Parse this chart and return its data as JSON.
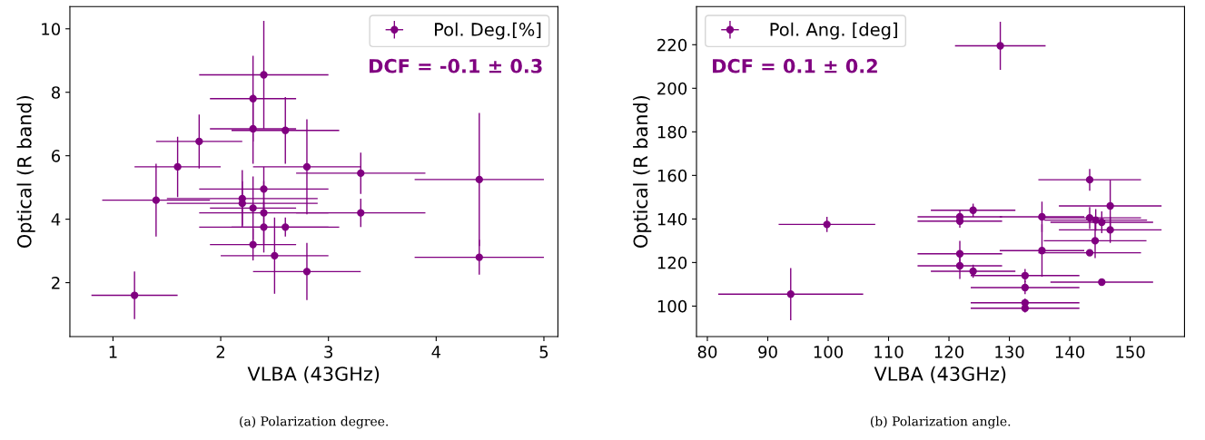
{
  "chart_data": [
    {
      "type": "scatter",
      "xlabel": "VLBA (43GHz)",
      "ylabel": "Optical (R band)",
      "xlim": [
        0.6,
        5.13
      ],
      "ylim": [
        0.3,
        10.7
      ],
      "xticks": [
        1,
        2,
        3,
        4,
        5
      ],
      "yticks": [
        2,
        4,
        6,
        8,
        10
      ],
      "legend": "top right",
      "grid": false,
      "marker": "circle",
      "annotations": [
        "DCF = -0.1 ± 0.3",
        "(a) Polarization degree."
      ],
      "series": [
        {
          "name": "Pol. Deg.[%]",
          "color": "#800080",
          "x": [
            1.2,
            1.4,
            1.6,
            1.8,
            2.3,
            2.4,
            2.3,
            2.6,
            2.8,
            3.3,
            4.4,
            2.4,
            2.2,
            2.2,
            2.3,
            2.4,
            3.3,
            2.4,
            2.6,
            2.3,
            2.5,
            2.8,
            4.4
          ],
          "values": [
            1.6,
            4.6,
            5.65,
            6.45,
            7.8,
            8.55,
            6.85,
            6.8,
            5.65,
            5.45,
            5.25,
            4.95,
            4.65,
            4.5,
            4.35,
            4.2,
            4.2,
            3.75,
            3.75,
            3.2,
            2.85,
            2.35,
            2.8
          ],
          "xerrors": [
            0.4,
            0.5,
            0.4,
            0.4,
            0.4,
            0.6,
            0.4,
            0.5,
            0.5,
            0.6,
            0.6,
            0.6,
            0.7,
            0.7,
            0.4,
            0.6,
            0.6,
            0.6,
            0.5,
            0.4,
            0.5,
            0.5,
            0.6
          ],
          "errors": [
            0.75,
            1.15,
            0.95,
            0.85,
            1.35,
            1.7,
            1.1,
            1.05,
            1.5,
            0.65,
            2.1,
            0.7,
            0.9,
            0.7,
            1.0,
            1.0,
            0.45,
            0.8,
            0.3,
            0.5,
            1.2,
            0.9,
            0.55
          ]
        }
      ]
    },
    {
      "type": "scatter",
      "xlabel": "VLBA (43GHz)",
      "ylabel": "Optical (R band)",
      "xlim": [
        78.2,
        159
      ],
      "ylim": [
        86,
        237.5
      ],
      "xticks": [
        80,
        90,
        100,
        110,
        120,
        130,
        140,
        150
      ],
      "yticks": [
        100,
        120,
        140,
        160,
        180,
        200,
        220
      ],
      "legend": "top left",
      "grid": false,
      "marker": "circle",
      "annotations": [
        "DCF = 0.1 ± 0.2",
        "(b) Polarization angle."
      ],
      "series": [
        {
          "name": "Pol. Ang. [deg]",
          "color": "#800080",
          "x": [
            93.8,
            99.8,
            128.5,
            121.8,
            121.8,
            124,
            121.8,
            121.8,
            124,
            132.6,
            132.6,
            132.6,
            132.6,
            135.4,
            135.4,
            143.3,
            143.3,
            144.3,
            145.3,
            146.7,
            146.7,
            144.2,
            143.3,
            145.3
          ],
          "values": [
            105.5,
            137.5,
            219.5,
            141,
            139,
            144,
            124,
            118.5,
            116,
            114,
            108.5,
            101.5,
            99,
            141,
            125.5,
            158,
            140.5,
            139.5,
            138.5,
            146,
            135,
            130,
            124.5,
            111
          ],
          "xerrors": [
            12,
            8,
            7.5,
            7,
            7,
            7,
            7,
            7,
            7,
            9,
            9,
            9,
            9,
            7,
            7,
            8.5,
            8.5,
            8.5,
            8.5,
            8.5,
            8.5,
            8.5,
            8.5,
            8.5
          ],
          "errors": [
            12,
            3.5,
            11,
            3,
            3,
            3,
            6,
            6,
            3,
            3,
            3,
            2,
            2,
            7,
            12,
            5,
            5,
            5,
            5,
            12,
            6,
            8,
            1,
            1
          ]
        }
      ]
    }
  ]
}
